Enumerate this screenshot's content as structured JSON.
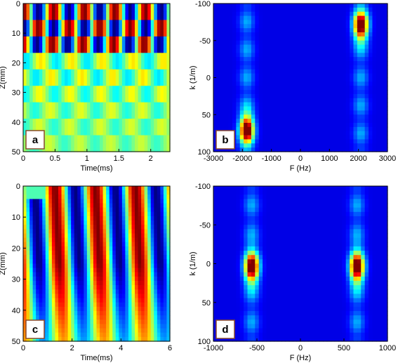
{
  "chart_data": [
    {
      "id": "a",
      "type": "heatmap",
      "panel_label": "a",
      "xlabel": "Time(ms)",
      "ylabel": "Z(mm)",
      "xlim": [
        0,
        2.3
      ],
      "ylim": [
        0,
        50
      ],
      "y_reversed": true,
      "xticks": [
        0,
        0.5,
        1,
        1.5,
        2
      ],
      "xtick_labels": [
        "0",
        "0.5",
        "1",
        "1.5",
        "2"
      ],
      "yticks": [
        0,
        10,
        20,
        30,
        40,
        50
      ],
      "ytick_labels": [
        "0",
        "10",
        "20",
        "30",
        "40",
        "50"
      ],
      "colormap": "jet",
      "pattern": {
        "kind": "wave",
        "bands": [
          {
            "z": [
              0,
              6
            ],
            "amp": 1.0,
            "phase": 0.0
          },
          {
            "z": [
              6,
              11
            ],
            "amp": 1.0,
            "phase": 3.14
          },
          {
            "z": [
              11,
              17
            ],
            "amp": 1.0,
            "phase": 0.3
          },
          {
            "z": [
              17,
              22
            ],
            "amp": 0.3,
            "phase": 2.6
          },
          {
            "z": [
              22,
              28
            ],
            "amp": 0.3,
            "phase": 0.5
          },
          {
            "z": [
              28,
              33
            ],
            "amp": 0.25,
            "phase": 2.9
          },
          {
            "z": [
              33,
              39
            ],
            "amp": 0.2,
            "phase": 0.7
          },
          {
            "z": [
              39,
              44
            ],
            "amp": 0.18,
            "phase": 3.0
          },
          {
            "z": [
              44,
              50
            ],
            "amp": 0.15,
            "phase": 0.9
          }
        ],
        "period_ms": 0.48
      }
    },
    {
      "id": "b",
      "type": "heatmap",
      "panel_label": "b",
      "xlabel": "F (Hz)",
      "ylabel": "k (1/m)",
      "xlim": [
        -3000,
        3000
      ],
      "ylim": [
        -100,
        100
      ],
      "y_reversed": false,
      "xticks": [
        -3000,
        -2000,
        -1000,
        0,
        1000,
        2000,
        3000
      ],
      "xtick_labels": [
        "-3000",
        "-2000",
        "-1000",
        "0",
        "1000",
        "2000",
        "3000"
      ],
      "yticks": [
        -100,
        -50,
        0,
        50,
        100
      ],
      "ytick_labels": [
        "-100",
        "-50",
        "0",
        "50",
        "100"
      ],
      "colormap": "jet",
      "peaks": [
        {
          "f": -1850,
          "k": 70,
          "amp": 1.0
        },
        {
          "f": 2080,
          "k": -70,
          "amp": 1.0
        }
      ]
    },
    {
      "id": "c",
      "type": "heatmap",
      "panel_label": "c",
      "xlabel": "Time(ms)",
      "ylabel": "Z(mm)",
      "xlim": [
        0,
        6
      ],
      "ylim": [
        0,
        50
      ],
      "y_reversed": true,
      "xticks": [
        0,
        2,
        4,
        6
      ],
      "xtick_labels": [
        "0",
        "2",
        "4",
        "6"
      ],
      "yticks": [
        0,
        10,
        20,
        30,
        40,
        50
      ],
      "ytick_labels": [
        "0",
        "10",
        "20",
        "30",
        "40",
        "50"
      ],
      "colormap": "jet",
      "pattern": {
        "kind": "slant",
        "period_ms": 1.65,
        "first_peak_ms": 1.3,
        "shift_ms_at_bottom": 0.35
      }
    },
    {
      "id": "d",
      "type": "heatmap",
      "panel_label": "d",
      "xlabel": "F (Hz)",
      "ylabel": "k (1/m)",
      "xlim": [
        -1000,
        1000
      ],
      "ylim": [
        -100,
        100
      ],
      "y_reversed": false,
      "xticks": [
        -1000,
        -500,
        0,
        500,
        1000
      ],
      "xtick_labels": [
        "-1000",
        "-500",
        "0",
        "500",
        "1000"
      ],
      "yticks": [
        -100,
        -50,
        0,
        50,
        100
      ],
      "ytick_labels": [
        "-100",
        "-50",
        "0",
        "50",
        "100"
      ],
      "colormap": "jet",
      "peaks": [
        {
          "f": -560,
          "k": 5,
          "amp": 1.0
        },
        {
          "f": 650,
          "k": 5,
          "amp": 1.0
        }
      ]
    }
  ]
}
